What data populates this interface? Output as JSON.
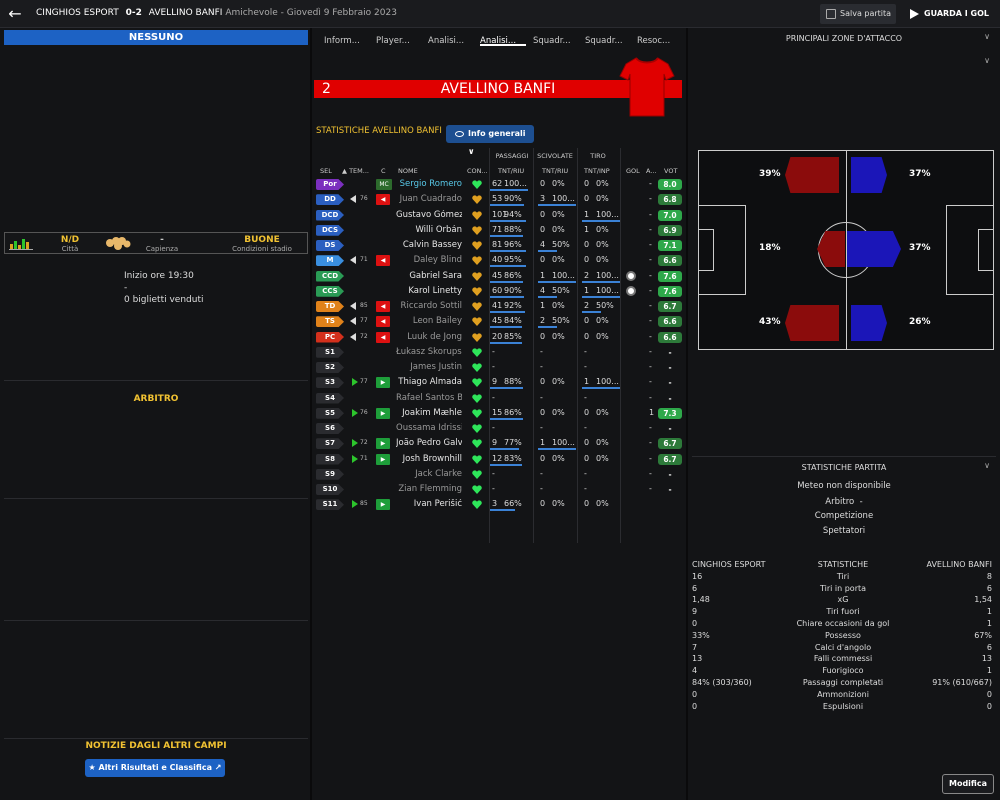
{
  "header": {
    "home_team": "CINGHIOS ESPORT",
    "score": "0-2",
    "away_team": "AVELLINO BANFI",
    "match_type": "Amichevole",
    "date": "Giovedì 9 Febbraio 2023",
    "save_label": "Salva partita",
    "goals_label": "GUARDA I GOL"
  },
  "left": {
    "banner": "NESSUNO",
    "city_value": "N/D",
    "city_label": "Città",
    "capacity_value": "-",
    "capacity_label": "Capienza",
    "conditions_value": "BUONE",
    "conditions_label": "Condizioni stadio",
    "start_time": "Inizio ore 19:30",
    "dash": "-",
    "tickets": "0 biglietti venduti",
    "referee_title": "ARBITRO",
    "news_title": "NOTIZIE DAGLI ALTRI CAMPI",
    "news_button": "Altri Risultati e Classifica"
  },
  "tabs": [
    "Inform...",
    "Player...",
    "Analisi...",
    "Analisi...",
    "Squadr...",
    "Squadr...",
    "Resoc..."
  ],
  "active_tab": 3,
  "team": {
    "number": "2",
    "name": "AVELLINO BANFI",
    "stats_title": "STATISTICHE AVELLINO BANFI",
    "info_button": "Info generali",
    "shirt_color": "#e00000"
  },
  "groups": {
    "passes": "PASSAGGI",
    "tackles": "SCIVOLATE",
    "shots": "TIRO"
  },
  "columns": {
    "sel": "SEL",
    "time": "TEM...",
    "c": "C",
    "name": "NOME",
    "cond": "CON...",
    "pass": "TNT/RIU",
    "tackle": "TNT/RIU",
    "shot": "TNT/INP",
    "goal": "GOL",
    "assist": "A...",
    "vote": "VOT"
  },
  "players": [
    {
      "pos": "Por",
      "pos_color": "#7b2fbe",
      "minute": "",
      "arrow": "",
      "change": "MC",
      "name": "Sergio Romero",
      "style": "hl",
      "cond": "#2ee65a",
      "pass_a": "62",
      "pass_p": "100...",
      "pass_f": 1.0,
      "tack_a": "0",
      "tack_p": "0%",
      "tack_f": 0,
      "shot_a": "0",
      "shot_p": "0%",
      "shot_f": 0,
      "goal": "",
      "assist": "-",
      "vote": "8.0",
      "vote_color": "#2ea84a",
      "ball": false
    },
    {
      "pos": "DD",
      "pos_color": "#2b5fc0",
      "minute": "76",
      "arrow": "out",
      "change": "red",
      "name": "Juan Cuadrado",
      "style": "dim",
      "cond": "#e0a020",
      "pass_a": "53",
      "pass_p": "90%",
      "pass_f": 0.9,
      "tack_a": "3",
      "tack_p": "100...",
      "tack_f": 1.0,
      "shot_a": "0",
      "shot_p": "0%",
      "shot_f": 0,
      "goal": "",
      "assist": "-",
      "vote": "6.8",
      "vote_color": "#2d7a3a",
      "ball": false
    },
    {
      "pos": "DCD",
      "pos_color": "#2b5fc0",
      "minute": "",
      "arrow": "",
      "change": "",
      "name": "Gustavo Gómez",
      "style": "",
      "cond": "#e0a020",
      "pass_a": "101",
      "pass_p": "94%",
      "pass_f": 0.94,
      "tack_a": "0",
      "tack_p": "0%",
      "tack_f": 0,
      "shot_a": "1",
      "shot_p": "100...",
      "shot_f": 1.0,
      "goal": "",
      "assist": "-",
      "vote": "7.0",
      "vote_color": "#2ea84a",
      "ball": false
    },
    {
      "pos": "DCS",
      "pos_color": "#2b5fc0",
      "minute": "",
      "arrow": "",
      "change": "",
      "name": "Willi Orbán",
      "style": "",
      "cond": "#e0a020",
      "pass_a": "71",
      "pass_p": "88%",
      "pass_f": 0.88,
      "tack_a": "0",
      "tack_p": "0%",
      "tack_f": 0,
      "shot_a": "1",
      "shot_p": "0%",
      "shot_f": 0,
      "goal": "",
      "assist": "-",
      "vote": "6.9",
      "vote_color": "#2d7a3a",
      "ball": false
    },
    {
      "pos": "DS",
      "pos_color": "#2b5fc0",
      "minute": "",
      "arrow": "",
      "change": "",
      "name": "Calvin Bassey",
      "style": "",
      "cond": "#e0a020",
      "pass_a": "81",
      "pass_p": "96%",
      "pass_f": 0.96,
      "tack_a": "4",
      "tack_p": "50%",
      "tack_f": 0.5,
      "shot_a": "0",
      "shot_p": "0%",
      "shot_f": 0,
      "goal": "",
      "assist": "-",
      "vote": "7.1",
      "vote_color": "#2ea84a",
      "ball": false
    },
    {
      "pos": "M",
      "pos_color": "#3a8fe0",
      "minute": "71",
      "arrow": "out",
      "change": "red",
      "name": "Daley Blind",
      "style": "dim",
      "cond": "#e0a020",
      "pass_a": "40",
      "pass_p": "95%",
      "pass_f": 0.95,
      "tack_a": "0",
      "tack_p": "0%",
      "tack_f": 0,
      "shot_a": "0",
      "shot_p": "0%",
      "shot_f": 0,
      "goal": "",
      "assist": "-",
      "vote": "6.6",
      "vote_color": "#2d7a3a",
      "ball": false
    },
    {
      "pos": "CCD",
      "pos_color": "#2a9b55",
      "minute": "",
      "arrow": "",
      "change": "",
      "name": "Gabriel Sara",
      "style": "",
      "cond": "#e0a020",
      "pass_a": "45",
      "pass_p": "86%",
      "pass_f": 0.86,
      "tack_a": "1",
      "tack_p": "100...",
      "tack_f": 1.0,
      "shot_a": "2",
      "shot_p": "100...",
      "shot_f": 1.0,
      "goal": "",
      "assist": "-",
      "vote": "7.6",
      "vote_color": "#2ea84a",
      "ball": true
    },
    {
      "pos": "CCS",
      "pos_color": "#2a9b55",
      "minute": "",
      "arrow": "",
      "change": "",
      "name": "Karol Linetty",
      "style": "",
      "cond": "#e0a020",
      "pass_a": "60",
      "pass_p": "90%",
      "pass_f": 0.9,
      "tack_a": "4",
      "tack_p": "50%",
      "tack_f": 0.5,
      "shot_a": "1",
      "shot_p": "100...",
      "shot_f": 1.0,
      "goal": "",
      "assist": "-",
      "vote": "7.6",
      "vote_color": "#2ea84a",
      "ball": true
    },
    {
      "pos": "TD",
      "pos_color": "#e0821a",
      "minute": "85",
      "arrow": "out",
      "change": "red",
      "name": "Riccardo Sottil",
      "style": "dim",
      "cond": "#e0a020",
      "pass_a": "41",
      "pass_p": "92%",
      "pass_f": 0.92,
      "tack_a": "1",
      "tack_p": "0%",
      "tack_f": 0,
      "shot_a": "2",
      "shot_p": "50%",
      "shot_f": 0.5,
      "goal": "",
      "assist": "-",
      "vote": "6.7",
      "vote_color": "#2d7a3a",
      "ball": false
    },
    {
      "pos": "TS",
      "pos_color": "#e0821a",
      "minute": "77",
      "arrow": "out",
      "change": "red",
      "name": "Leon Bailey",
      "style": "dim",
      "cond": "#e0a020",
      "pass_a": "45",
      "pass_p": "84%",
      "pass_f": 0.84,
      "tack_a": "2",
      "tack_p": "50%",
      "tack_f": 0.5,
      "shot_a": "0",
      "shot_p": "0%",
      "shot_f": 0,
      "goal": "",
      "assist": "-",
      "vote": "6.6",
      "vote_color": "#2d7a3a",
      "ball": false
    },
    {
      "pos": "PC",
      "pos_color": "#d3301c",
      "minute": "72",
      "arrow": "out",
      "change": "red",
      "name": "Luuk de Jong",
      "style": "dim",
      "cond": "#e0a020",
      "pass_a": "20",
      "pass_p": "85%",
      "pass_f": 0.85,
      "tack_a": "0",
      "tack_p": "0%",
      "tack_f": 0,
      "shot_a": "0",
      "shot_p": "0%",
      "shot_f": 0,
      "goal": "",
      "assist": "-",
      "vote": "6.6",
      "vote_color": "#2d7a3a",
      "ball": false
    },
    {
      "pos": "S1",
      "pos_color": "#2a2b2f",
      "minute": "",
      "arrow": "",
      "change": "",
      "name": "Łukasz Skorupski",
      "style": "dim",
      "cond": "#2ee65a",
      "pass_a": "-",
      "pass_p": "",
      "pass_f": 0,
      "tack_a": "-",
      "tack_p": "",
      "tack_f": 0,
      "shot_a": "-",
      "shot_p": "",
      "shot_f": 0,
      "goal": "",
      "assist": "-",
      "vote": "-",
      "vote_color": "transparent",
      "ball": false
    },
    {
      "pos": "S2",
      "pos_color": "#2a2b2f",
      "minute": "",
      "arrow": "",
      "change": "",
      "name": "James Justin",
      "style": "dim",
      "cond": "#2ee65a",
      "pass_a": "-",
      "pass_p": "",
      "pass_f": 0,
      "tack_a": "-",
      "tack_p": "",
      "tack_f": 0,
      "shot_a": "-",
      "shot_p": "",
      "shot_f": 0,
      "goal": "",
      "assist": "-",
      "vote": "-",
      "vote_color": "transparent",
      "ball": false
    },
    {
      "pos": "S3",
      "pos_color": "#2a2b2f",
      "minute": "77",
      "arrow": "in",
      "change": "green",
      "name": "Thiago Almada",
      "style": "",
      "cond": "#2ee65a",
      "pass_a": "9",
      "pass_p": "88%",
      "pass_f": 0.88,
      "tack_a": "0",
      "tack_p": "0%",
      "tack_f": 0,
      "shot_a": "1",
      "shot_p": "100...",
      "shot_f": 1.0,
      "goal": "",
      "assist": "-",
      "vote": "-",
      "vote_color": "transparent",
      "ball": false
    },
    {
      "pos": "S4",
      "pos_color": "#2a2b2f",
      "minute": "",
      "arrow": "",
      "change": "",
      "name": "Rafael Santos Borré",
      "style": "dim",
      "cond": "#2ee65a",
      "pass_a": "-",
      "pass_p": "",
      "pass_f": 0,
      "tack_a": "-",
      "tack_p": "",
      "tack_f": 0,
      "shot_a": "-",
      "shot_p": "",
      "shot_f": 0,
      "goal": "",
      "assist": "-",
      "vote": "-",
      "vote_color": "transparent",
      "ball": false
    },
    {
      "pos": "S5",
      "pos_color": "#2a2b2f",
      "minute": "76",
      "arrow": "in",
      "change": "green",
      "name": "Joakim Mæhle",
      "style": "",
      "cond": "#2ee65a",
      "pass_a": "15",
      "pass_p": "86%",
      "pass_f": 0.86,
      "tack_a": "0",
      "tack_p": "0%",
      "tack_f": 0,
      "shot_a": "0",
      "shot_p": "0%",
      "shot_f": 0,
      "goal": "",
      "assist": "1",
      "vote": "7.3",
      "vote_color": "#2ea84a",
      "ball": false
    },
    {
      "pos": "S6",
      "pos_color": "#2a2b2f",
      "minute": "",
      "arrow": "",
      "change": "",
      "name": "Oussama Idrissi",
      "style": "dim",
      "cond": "#2ee65a",
      "pass_a": "-",
      "pass_p": "",
      "pass_f": 0,
      "tack_a": "-",
      "tack_p": "",
      "tack_f": 0,
      "shot_a": "-",
      "shot_p": "",
      "shot_f": 0,
      "goal": "",
      "assist": "-",
      "vote": "-",
      "vote_color": "transparent",
      "ball": false
    },
    {
      "pos": "S7",
      "pos_color": "#2a2b2f",
      "minute": "72",
      "arrow": "in",
      "change": "green",
      "name": "João Pedro Galvão",
      "style": "",
      "cond": "#2ee65a",
      "pass_a": "9",
      "pass_p": "77%",
      "pass_f": 0.77,
      "tack_a": "1",
      "tack_p": "100...",
      "tack_f": 1.0,
      "shot_a": "0",
      "shot_p": "0%",
      "shot_f": 0,
      "goal": "",
      "assist": "-",
      "vote": "6.7",
      "vote_color": "#2d7a3a",
      "ball": false
    },
    {
      "pos": "S8",
      "pos_color": "#2a2b2f",
      "minute": "71",
      "arrow": "in",
      "change": "green",
      "name": "Josh Brownhill",
      "style": "",
      "cond": "#2ee65a",
      "pass_a": "12",
      "pass_p": "83%",
      "pass_f": 0.83,
      "tack_a": "0",
      "tack_p": "0%",
      "tack_f": 0,
      "shot_a": "0",
      "shot_p": "0%",
      "shot_f": 0,
      "goal": "",
      "assist": "-",
      "vote": "6.7",
      "vote_color": "#2d7a3a",
      "ball": false
    },
    {
      "pos": "S9",
      "pos_color": "#2a2b2f",
      "minute": "",
      "arrow": "",
      "change": "",
      "name": "Jack Clarke",
      "style": "dim",
      "cond": "#2ee65a",
      "pass_a": "-",
      "pass_p": "",
      "pass_f": 0,
      "tack_a": "-",
      "tack_p": "",
      "tack_f": 0,
      "shot_a": "-",
      "shot_p": "",
      "shot_f": 0,
      "goal": "",
      "assist": "-",
      "vote": "-",
      "vote_color": "transparent",
      "ball": false
    },
    {
      "pos": "S10",
      "pos_color": "#2a2b2f",
      "minute": "",
      "arrow": "",
      "change": "",
      "name": "Zian Flemming",
      "style": "dim",
      "cond": "#2ee65a",
      "pass_a": "-",
      "pass_p": "",
      "pass_f": 0,
      "tack_a": "-",
      "tack_p": "",
      "tack_f": 0,
      "shot_a": "-",
      "shot_p": "",
      "shot_f": 0,
      "goal": "",
      "assist": "-",
      "vote": "-",
      "vote_color": "transparent",
      "ball": false
    },
    {
      "pos": "S11",
      "pos_color": "#2a2b2f",
      "minute": "85",
      "arrow": "in",
      "change": "green",
      "name": "Ivan Perišić",
      "style": "",
      "cond": "#2ee65a",
      "pass_a": "3",
      "pass_p": "66%",
      "pass_f": 0.66,
      "tack_a": "0",
      "tack_p": "0%",
      "tack_f": 0,
      "shot_a": "0",
      "shot_p": "0%",
      "shot_f": 0,
      "goal": "",
      "assist": "",
      "vote": "",
      "vote_color": "transparent",
      "ball": false
    }
  ],
  "attack": {
    "title": "PRINCIPALI ZONE D'ATTACCO",
    "home_color": "#8b0c0c",
    "away_color": "#1b16b8",
    "home_left": "39%",
    "home_center": "18%",
    "home_right": "43%",
    "away_left": "37%",
    "away_center": "37%",
    "away_right": "26%"
  },
  "match": {
    "title": "STATISTICHE PARTITA",
    "weather": "Meteo non disponibile",
    "referee_label": "Arbitro",
    "referee_value": "-",
    "competition": "Competizione",
    "spectators": "Spettatori",
    "col_home": "CINGHIOS ESPORT",
    "col_stat": "STATISTICHE",
    "col_away": "AVELLINO BANFI",
    "rows": [
      {
        "home": "16",
        "label": "Tiri",
        "away": "8"
      },
      {
        "home": "6",
        "label": "Tiri in porta",
        "away": "6"
      },
      {
        "home": "1,48",
        "label": "xG",
        "away": "1,54"
      },
      {
        "home": "9",
        "label": "Tiri fuori",
        "away": "1"
      },
      {
        "home": "0",
        "label": "Chiare occasioni da gol",
        "away": "1"
      },
      {
        "home": "33%",
        "label": "Possesso",
        "away": "67%"
      },
      {
        "home": "7",
        "label": "Calci d'angolo",
        "away": "6"
      },
      {
        "home": "13",
        "label": "Falli commessi",
        "away": "13"
      },
      {
        "home": "4",
        "label": "Fuorigioco",
        "away": "1"
      },
      {
        "home": "84% (303/360)",
        "label": "Passaggi completati",
        "away": "91% (610/667)"
      },
      {
        "home": "0",
        "label": "Ammonizioni",
        "away": "0"
      },
      {
        "home": "0",
        "label": "Espulsioni",
        "away": "0"
      }
    ],
    "edit_button": "Modifica"
  }
}
